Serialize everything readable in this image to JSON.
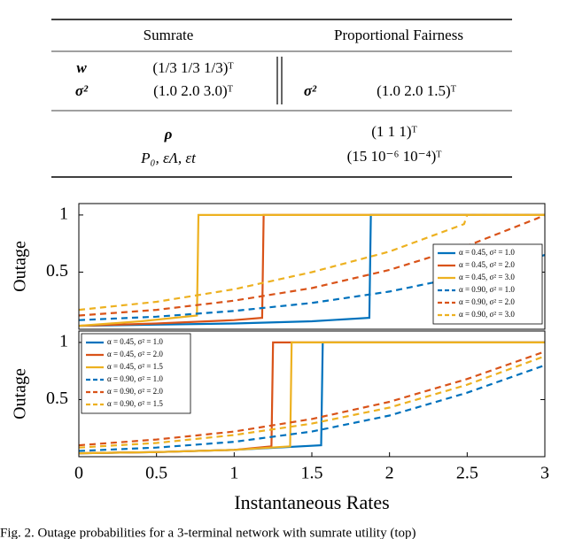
{
  "table": {
    "header": [
      "Sumrate",
      "Proportional Fairness"
    ],
    "rows": [
      [
        "w",
        "(1/3   1/3   1/3)ᵀ"
      ],
      [
        "σ²",
        "(1.0   2.0   3.0)ᵀ",
        "σ²",
        "(1.0   2.0   1.5)ᵀ"
      ]
    ],
    "shared_rows": [
      [
        "ρ",
        "(1   1   1)ᵀ"
      ],
      [
        "P₀, εΛ, εt",
        "(15   10⁻⁶   10⁻⁴)ᵀ"
      ]
    ]
  },
  "chart_data": [
    {
      "type": "line",
      "ylabel": "Outage",
      "xlim": [
        0,
        3
      ],
      "ylim": [
        0,
        1.1
      ],
      "yticks": [
        0.5,
        1
      ],
      "legend": "lower right",
      "series": [
        {
          "name": "α = 0.45, σ² = 1.0",
          "color": "#0072bd",
          "style": "solid",
          "x": [
            0,
            0.5,
            1,
            1.5,
            1.87,
            1.88,
            3
          ],
          "values": [
            0.03,
            0.04,
            0.05,
            0.07,
            0.1,
            1,
            1
          ]
        },
        {
          "name": "α = 0.45, σ² = 2.0",
          "color": "#d95319",
          "style": "solid",
          "x": [
            0,
            0.5,
            1,
            1.18,
            1.19,
            3
          ],
          "values": [
            0.03,
            0.05,
            0.08,
            0.1,
            1,
            1
          ]
        },
        {
          "name": "α = 0.45, σ² = 3.0",
          "color": "#edb120",
          "style": "solid",
          "x": [
            0,
            0.4,
            0.76,
            0.77,
            3
          ],
          "values": [
            0.03,
            0.07,
            0.12,
            1,
            1
          ]
        },
        {
          "name": "α = 0.90, σ² = 1.0",
          "color": "#0072bd",
          "style": "dashed",
          "x": [
            0,
            0.5,
            1,
            1.5,
            2,
            2.5,
            3
          ],
          "values": [
            0.08,
            0.11,
            0.16,
            0.23,
            0.33,
            0.47,
            0.65
          ]
        },
        {
          "name": "α = 0.90, σ² = 2.0",
          "color": "#d95319",
          "style": "dashed",
          "x": [
            0,
            0.5,
            1,
            1.5,
            2,
            2.5,
            2.95,
            3
          ],
          "values": [
            0.12,
            0.17,
            0.25,
            0.36,
            0.52,
            0.73,
            0.97,
            1
          ]
        },
        {
          "name": "α = 0.90, σ² = 3.0",
          "color": "#edb120",
          "style": "dashed",
          "x": [
            0,
            0.5,
            1,
            1.5,
            2,
            2.48,
            2.5,
            3
          ],
          "values": [
            0.17,
            0.24,
            0.35,
            0.5,
            0.68,
            0.92,
            1,
            1
          ]
        }
      ]
    },
    {
      "type": "line",
      "ylabel": "Outage",
      "xlabel": "Instantaneous Rates",
      "xlim": [
        0,
        3
      ],
      "ylim": [
        0,
        1.1
      ],
      "xticks": [
        0,
        0.5,
        1,
        1.5,
        2,
        2.5,
        3
      ],
      "yticks": [
        0.5,
        1
      ],
      "legend": "upper left",
      "series": [
        {
          "name": "α = 0.45, σ² = 1.0",
          "color": "#0072bd",
          "style": "solid",
          "x": [
            0,
            0.5,
            1,
            1.56,
            1.57,
            3
          ],
          "values": [
            0.03,
            0.04,
            0.06,
            0.1,
            1,
            1
          ]
        },
        {
          "name": "α = 0.45, σ² = 2.0",
          "color": "#d95319",
          "style": "solid",
          "x": [
            0,
            0.5,
            1,
            1.24,
            1.25,
            3
          ],
          "values": [
            0.03,
            0.04,
            0.06,
            0.09,
            1,
            1
          ]
        },
        {
          "name": "α = 0.45, σ² = 1.5",
          "color": "#edb120",
          "style": "solid",
          "x": [
            0,
            0.5,
            1,
            1.36,
            1.37,
            3
          ],
          "values": [
            0.03,
            0.04,
            0.06,
            0.09,
            1,
            1
          ]
        },
        {
          "name": "α = 0.90, σ² = 1.0",
          "color": "#0072bd",
          "style": "dashed",
          "x": [
            0,
            0.5,
            1,
            1.5,
            2,
            2.5,
            3
          ],
          "values": [
            0.05,
            0.08,
            0.13,
            0.22,
            0.36,
            0.56,
            0.8
          ]
        },
        {
          "name": "α = 0.90, σ² = 2.0",
          "color": "#d95319",
          "style": "dashed",
          "x": [
            0,
            0.5,
            1,
            1.5,
            2,
            2.5,
            3
          ],
          "values": [
            0.1,
            0.15,
            0.22,
            0.33,
            0.48,
            0.68,
            0.92
          ]
        },
        {
          "name": "α = 0.90, σ² = 1.5",
          "color": "#edb120",
          "style": "dashed",
          "x": [
            0,
            0.5,
            1,
            1.5,
            2,
            2.5,
            3
          ],
          "values": [
            0.08,
            0.12,
            0.19,
            0.29,
            0.43,
            0.63,
            0.88
          ]
        }
      ]
    }
  ],
  "caption": "Fig. 2. Outage probabilities for a 3-terminal network with sumrate utility (top)"
}
